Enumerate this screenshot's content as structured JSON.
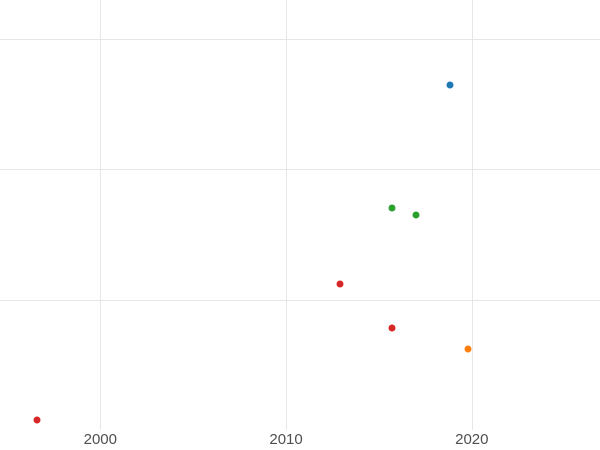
{
  "chart_data": {
    "type": "scatter",
    "title": "",
    "xlabel": "",
    "ylabel": "",
    "grid": true,
    "legend_position": "none",
    "background_color": "#ffffff",
    "grid_color": "#e6e6e6",
    "tick_label_color": "#4f4f4f",
    "xlim": [
      1994.6,
      2026.9
    ],
    "ylim": [
      0,
      3.3
    ],
    "x_ticks": [
      {
        "value": 2000,
        "label": "2000"
      },
      {
        "value": 2010,
        "label": "2010"
      },
      {
        "value": 2020,
        "label": "2020"
      }
    ],
    "y_gridlines": [
      1,
      2,
      3
    ],
    "y_tick_labels_visible": false,
    "marker_size_px": 7,
    "series": [
      {
        "name": "series-blue",
        "color": "#1f77b4",
        "points": [
          {
            "x": 2018.8,
            "y": 2.65
          }
        ]
      },
      {
        "name": "series-orange",
        "color": "#ff7f0e",
        "points": [
          {
            "x": 2019.8,
            "y": 0.62
          }
        ]
      },
      {
        "name": "series-green",
        "color": "#2ca02c",
        "points": [
          {
            "x": 2015.7,
            "y": 1.7
          },
          {
            "x": 2017.0,
            "y": 1.65
          }
        ]
      },
      {
        "name": "series-red",
        "color": "#d62728",
        "points": [
          {
            "x": 1996.6,
            "y": 0.08
          },
          {
            "x": 2012.9,
            "y": 1.12
          },
          {
            "x": 2015.7,
            "y": 0.78
          }
        ]
      }
    ]
  }
}
